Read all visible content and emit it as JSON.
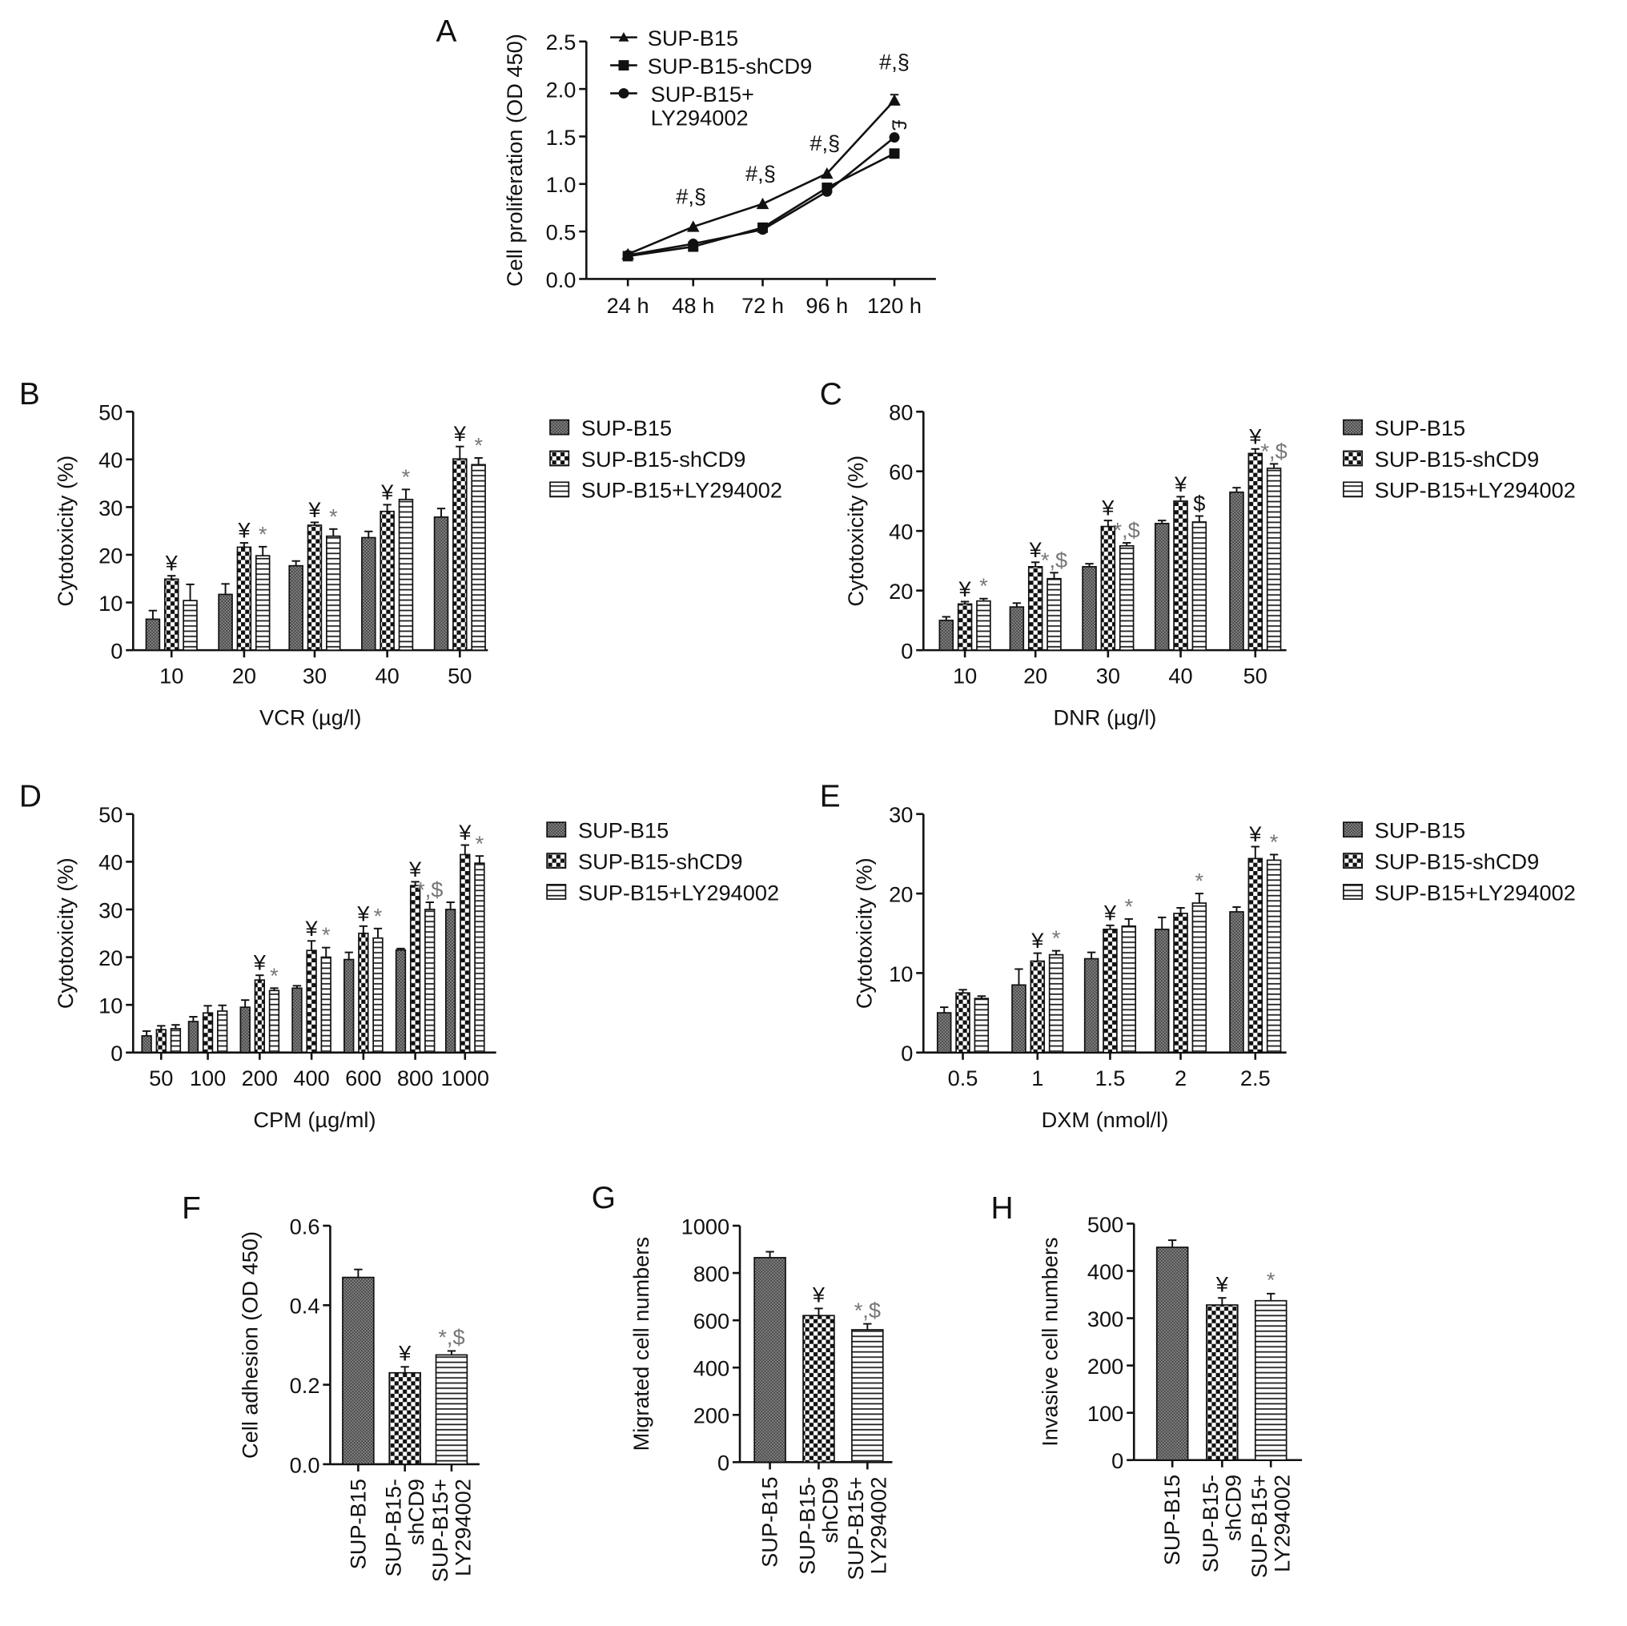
{
  "chart_data": [
    {
      "panel": "A",
      "type": "line",
      "ylabel": "Cell proliferation (OD 450)",
      "categories": [
        "24 h",
        "48 h",
        "72 h",
        "96 h",
        "120 h"
      ],
      "ylim": [
        0,
        2.5
      ],
      "yticks": [
        "0.0",
        "0.5",
        "1.0",
        "1.5",
        "2.0",
        "2.5"
      ],
      "series": [
        {
          "name": "SUP-B15",
          "marker": "triangle",
          "values": [
            0.26,
            0.55,
            0.79,
            1.11,
            1.88
          ]
        },
        {
          "name": "SUP-B15-shCD9",
          "marker": "square",
          "values": [
            0.24,
            0.34,
            0.54,
            0.96,
            1.32
          ]
        },
        {
          "name": "SUP-B15+\nLY294002",
          "marker": "circle",
          "values": [
            0.25,
            0.37,
            0.52,
            0.92,
            1.49
          ]
        }
      ],
      "legend_lines": [
        "SUP-B15",
        "SUP-B15-shCD9",
        "SUP-B15+",
        "LY294002"
      ],
      "annotations": [
        "",
        "#,§",
        "#,§",
        "#,§",
        "#,§"
      ],
      "extra_annotation": "£"
    },
    {
      "panel": "B",
      "type": "bar",
      "xlabel": "VCR (µg/l)",
      "ylabel": "Cytotoxicity (%)",
      "categories": [
        "10",
        "20",
        "30",
        "40",
        "50"
      ],
      "ylim": [
        0,
        50
      ],
      "yticks": [
        "0",
        "10",
        "20",
        "30",
        "40",
        "50"
      ],
      "series": [
        {
          "name": "SUP-B15",
          "values": [
            6.5,
            11.7,
            17.7,
            23.6,
            27.9
          ],
          "errors": [
            1.8,
            2.2,
            1.0,
            1.3,
            1.8
          ],
          "annotations": [
            "",
            "",
            "",
            "",
            ""
          ]
        },
        {
          "name": "SUP-B15-shCD9",
          "values": [
            14.9,
            21.6,
            26.2,
            29.1,
            40.1
          ],
          "errors": [
            0.7,
            0.9,
            0.6,
            1.4,
            2.6
          ],
          "annotations": [
            "¥",
            "¥",
            "¥",
            "¥",
            "¥"
          ]
        },
        {
          "name": "SUP-B15+LY294002",
          "values": [
            10.4,
            19.8,
            23.9,
            31.6,
            38.9
          ],
          "errors": [
            3.4,
            1.9,
            1.5,
            2.1,
            1.4
          ],
          "annotations": [
            "",
            "*",
            "*",
            "*",
            "*"
          ]
        }
      ]
    },
    {
      "panel": "C",
      "type": "bar",
      "xlabel": "DNR (µg/l)",
      "ylabel": "Cytotoxicity (%)",
      "categories": [
        "10",
        "20",
        "30",
        "40",
        "50"
      ],
      "ylim": [
        0,
        80
      ],
      "yticks": [
        "0",
        "20",
        "40",
        "60",
        "80"
      ],
      "series": [
        {
          "name": "SUP-B15",
          "values": [
            10,
            14.5,
            28,
            42.5,
            53
          ],
          "errors": [
            1.2,
            1.3,
            1.0,
            1.0,
            1.5
          ],
          "annotations": [
            "",
            "",
            "",
            "",
            ""
          ]
        },
        {
          "name": "SUP-B15-shCD9",
          "values": [
            15.5,
            28,
            41.5,
            50,
            66
          ],
          "errors": [
            0.8,
            1.5,
            2.0,
            1.5,
            1.5
          ],
          "annotations": [
            "¥",
            "¥",
            "¥",
            "¥",
            "¥"
          ]
        },
        {
          "name": "SUP-B15+LY294002",
          "values": [
            16.5,
            24,
            35,
            43,
            61
          ],
          "errors": [
            0.8,
            2.0,
            1.0,
            2.0,
            1.5
          ],
          "annotations": [
            "*",
            "*,$",
            "*,$",
            "$",
            "*,$"
          ]
        }
      ]
    },
    {
      "panel": "D",
      "type": "bar",
      "xlabel": "CPM (µg/ml)",
      "ylabel": "Cytotoxicity (%)",
      "categories": [
        "50",
        "100",
        "200",
        "400",
        "600",
        "800",
        "1000"
      ],
      "ylim": [
        0,
        50
      ],
      "yticks": [
        "0",
        "10",
        "20",
        "30",
        "40",
        "50"
      ],
      "series": [
        {
          "name": "SUP-B15",
          "values": [
            3.5,
            6.5,
            9.5,
            13.5,
            19.5,
            21.5,
            30
          ],
          "errors": [
            1.0,
            1.0,
            1.5,
            0.5,
            1.5,
            0.3,
            1.5
          ],
          "annotations": [
            "",
            "",
            "",
            "",
            "",
            "",
            ""
          ]
        },
        {
          "name": "SUP-B15-shCD9",
          "values": [
            4.8,
            8.3,
            15.2,
            21.4,
            25,
            35,
            41.5
          ],
          "errors": [
            0.8,
            1.5,
            1.0,
            2.0,
            1.5,
            0.8,
            2.0
          ],
          "annotations": [
            "",
            "",
            "¥",
            "¥",
            "¥",
            "¥",
            "¥"
          ]
        },
        {
          "name": "SUP-B15+LY294002",
          "values": [
            5,
            8.7,
            13,
            20,
            24,
            30,
            39.7
          ],
          "errors": [
            0.8,
            1.2,
            0.5,
            2.0,
            2.0,
            1.5,
            1.5
          ],
          "annotations": [
            "",
            "",
            "*",
            "*",
            "*",
            "*,$",
            "*"
          ]
        }
      ]
    },
    {
      "panel": "E",
      "type": "bar",
      "xlabel": "DXM (nmol/l)",
      "ylabel": "Cytotoxicity (%)",
      "categories": [
        "0.5",
        "1",
        "1.5",
        "2",
        "2.5"
      ],
      "ylim": [
        0,
        30
      ],
      "yticks": [
        "0",
        "10",
        "20",
        "30"
      ],
      "series": [
        {
          "name": "SUP-B15",
          "values": [
            5,
            8.5,
            11.8,
            15.5,
            17.7
          ],
          "errors": [
            0.7,
            2.0,
            0.8,
            1.5,
            0.6
          ],
          "annotations": [
            "",
            "",
            "",
            "",
            ""
          ]
        },
        {
          "name": "SUP-B15-shCD9",
          "values": [
            7.5,
            11.5,
            15.5,
            17.5,
            24.4
          ],
          "errors": [
            0.4,
            1.0,
            0.5,
            0.7,
            1.5
          ],
          "annotations": [
            "",
            "¥",
            "¥",
            "",
            "¥"
          ]
        },
        {
          "name": "SUP-B15+LY294002",
          "values": [
            6.8,
            12.3,
            15.9,
            18.8,
            24.2
          ],
          "errors": [
            0.3,
            0.5,
            0.9,
            1.2,
            0.7
          ],
          "annotations": [
            "",
            "*",
            "*",
            "*",
            "*"
          ]
        }
      ]
    },
    {
      "panel": "F",
      "type": "bar",
      "ylabel": "Cell adhesion (OD 450)",
      "categories": [
        "SUP-B15",
        "SUP-B15-\nshCD9",
        "SUP-B15+\nLY294002"
      ],
      "ylim": [
        0,
        0.6
      ],
      "yticks": [
        "0.0",
        "0.2",
        "0.4",
        "0.6"
      ],
      "values": [
        0.47,
        0.23,
        0.275
      ],
      "errors": [
        0.02,
        0.015,
        0.01
      ],
      "annotations": [
        "",
        "¥",
        "*,$"
      ]
    },
    {
      "panel": "G",
      "type": "bar",
      "ylabel": "Migrated cell numbers",
      "categories": [
        "SUP-B15",
        "SUP-B15-\nshCD9",
        "SUP-B15+\nLY294002"
      ],
      "ylim": [
        0,
        1000
      ],
      "yticks": [
        "0",
        "200",
        "400",
        "600",
        "800",
        "1000"
      ],
      "values": [
        865,
        620,
        560
      ],
      "errors": [
        25,
        30,
        25
      ],
      "annotations": [
        "",
        "¥",
        "*,$"
      ]
    },
    {
      "panel": "H",
      "type": "bar",
      "ylabel": "Invasive cell numbers",
      "categories": [
        "SUP-B15",
        "SUP-B15-\nshCD9",
        "SUP-B15+\nLY294002"
      ],
      "ylim": [
        0,
        500
      ],
      "yticks": [
        "0",
        "100",
        "200",
        "300",
        "400",
        "500"
      ],
      "values": [
        450,
        328,
        337
      ],
      "errors": [
        15,
        15,
        15
      ],
      "annotations": [
        "",
        "¥",
        "*"
      ]
    }
  ]
}
